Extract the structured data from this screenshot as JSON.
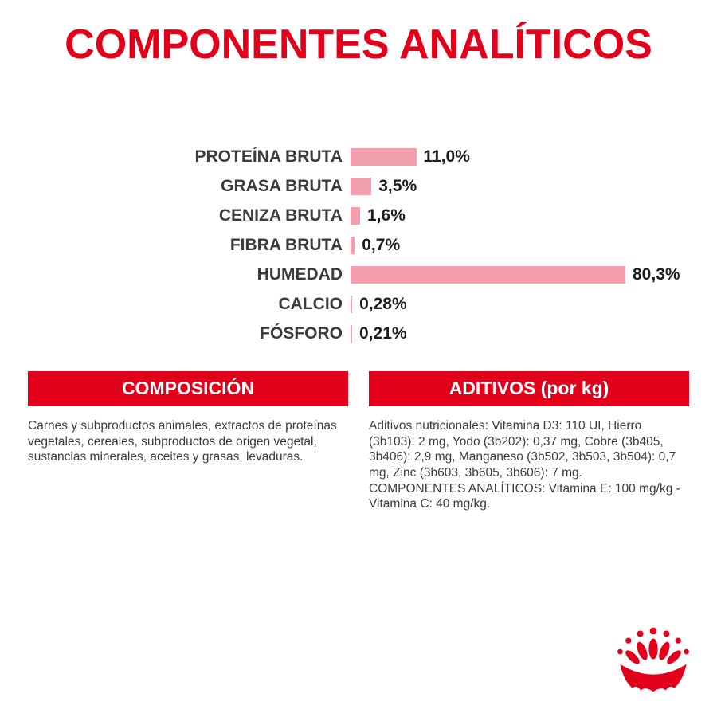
{
  "title": "COMPONENTES ANALÍTICOS",
  "colors": {
    "brand_red": "#e2001a",
    "bar_pink": "#f39fae",
    "text_dark": "#3c3c3b"
  },
  "chart_data": {
    "type": "bar",
    "orientation": "horizontal",
    "title": "COMPONENTES ANALÍTICOS",
    "categories": [
      "PROTEÍNA BRUTA",
      "GRASA BRUTA",
      "CENIZA BRUTA",
      "FIBRA BRUTA",
      "HUMEDAD",
      "CALCIO",
      "FÓSFORO"
    ],
    "values": [
      11.0,
      3.5,
      1.6,
      0.7,
      80.3,
      0.28,
      0.21
    ],
    "value_labels": [
      "11,0%",
      "3,5%",
      "1,6%",
      "0,7%",
      "80,3%",
      "0,28%",
      "0,21%"
    ],
    "unit": "%",
    "xlim": [
      0,
      100
    ],
    "bar_color": "#f39fae",
    "grid": false,
    "legend": false
  },
  "sections": {
    "composicion": {
      "header": "COMPOSICIÓN",
      "body": "Carnes y subproductos animales, extractos de proteínas vegetales, cereales, subproductos de origen vegetal, sustancias minerales, aceites y grasas, levaduras."
    },
    "aditivos": {
      "header": "ADITIVOS (por kg)",
      "body_p1": "Aditivos nutricionales: Vitamina D3: 110 UI, Hierro (3b103): 2 mg, Yodo (3b202): 0,37 mg, Cobre (3b405, 3b406): 2,9 mg, Manganeso (3b502, 3b503, 3b504): 0,7 mg, Zinc (3b603, 3b605, 3b606): 7 mg.",
      "body_p2": "COMPONENTES ANALÍTICOS: Vitamina E: 100 mg/kg - Vitamina C: 40 mg/kg."
    }
  },
  "logo": {
    "icon": "royal-canin-crown-paw-icon"
  }
}
